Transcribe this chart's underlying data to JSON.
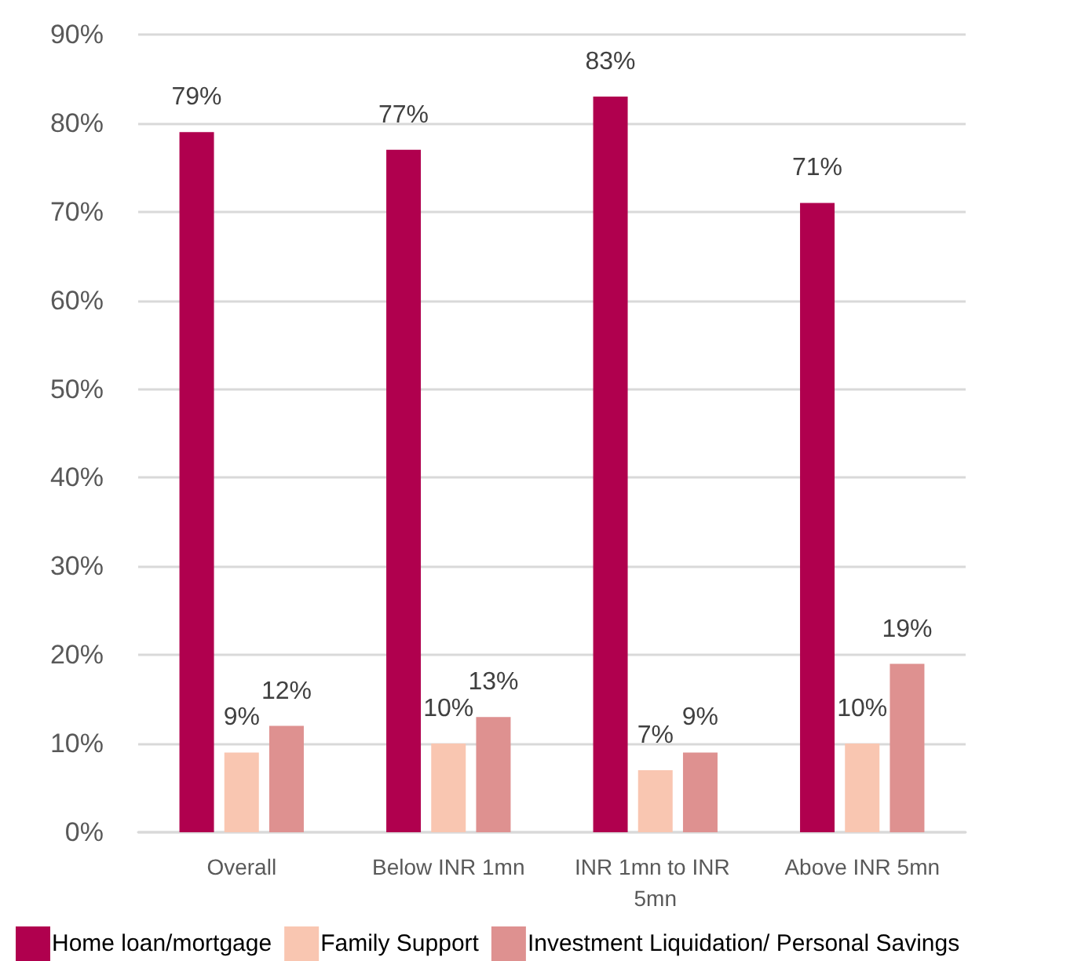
{
  "chart_data": {
    "type": "bar",
    "categories": [
      "Overall",
      "Below INR 1mn",
      "INR 1mn to INR 5mn",
      "Above INR 5mn"
    ],
    "series": [
      {
        "name": "Home loan/mortgage",
        "color": "#b0004e",
        "values": [
          79,
          77,
          83,
          71
        ],
        "value_labels": [
          "79%",
          "77%",
          "83%",
          "71%"
        ]
      },
      {
        "name": "Family Support",
        "color": "#f9c6b1",
        "values": [
          9,
          10,
          7,
          10
        ],
        "value_labels": [
          "9%",
          "10%",
          "7%",
          "10%"
        ]
      },
      {
        "name": "Investment Liquidation/ Personal Savings",
        "color": "#de9190",
        "values": [
          12,
          13,
          9,
          19
        ],
        "value_labels": [
          "12%",
          "13%",
          "9%",
          "19%"
        ]
      }
    ],
    "ylim": [
      0,
      90
    ],
    "yticks": [
      {
        "value": 0,
        "label": "0%"
      },
      {
        "value": 10,
        "label": "10%"
      },
      {
        "value": 20,
        "label": "20%"
      },
      {
        "value": 30,
        "label": "30%"
      },
      {
        "value": 40,
        "label": "40%"
      },
      {
        "value": 50,
        "label": "50%"
      },
      {
        "value": 60,
        "label": "60%"
      },
      {
        "value": 70,
        "label": "70%"
      },
      {
        "value": 80,
        "label": "80%"
      },
      {
        "value": 90,
        "label": "90%"
      }
    ],
    "grid": "y",
    "legend": "bottom left"
  }
}
